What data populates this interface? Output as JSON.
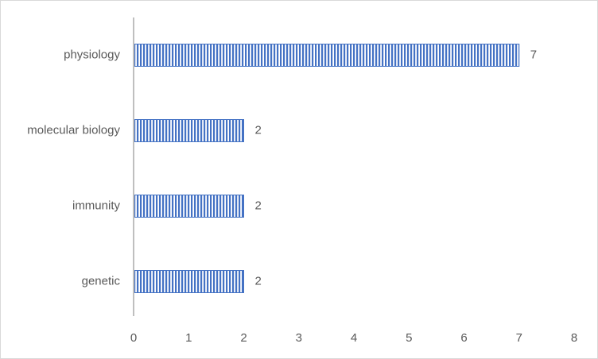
{
  "chart_data": {
    "type": "bar",
    "orientation": "horizontal",
    "categories": [
      "physiology",
      "molecular biology",
      "immunity",
      "genetic"
    ],
    "values": [
      7,
      2,
      2,
      2
    ],
    "color": "#4472c4",
    "xlim": [
      0,
      8
    ],
    "xticks": [
      0,
      1,
      2,
      3,
      4,
      5,
      6,
      7,
      8
    ],
    "grid": false,
    "data_labels": true
  }
}
